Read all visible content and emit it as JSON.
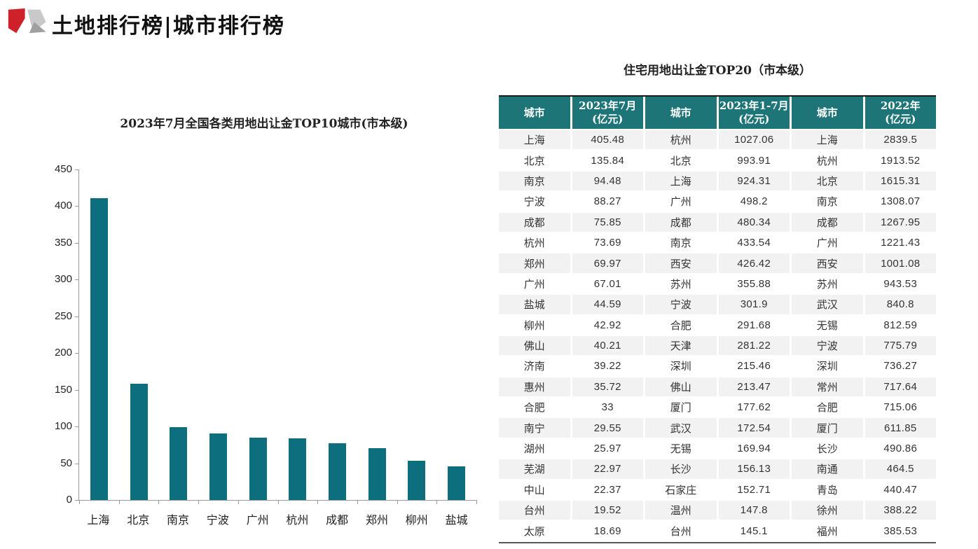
{
  "page": {
    "title": "土地排行榜|城市排行榜"
  },
  "colors": {
    "bar_teal": "#0d6e7d",
    "header_teal": "#1e7578",
    "row_alt_gray": "#f2f2f2",
    "logo_red": "#ce2129",
    "logo_gray_light": "#c9c9c9",
    "logo_gray_dark": "#a0a0a0"
  },
  "chart_data": [
    {
      "type": "bar",
      "title": "2023年7月全国各类用地出让金TOP10城市(市本级)",
      "categories": [
        "上海",
        "北京",
        "南京",
        "宁波",
        "广州",
        "杭州",
        "成都",
        "郑州",
        "柳州",
        "盐城"
      ],
      "values": [
        411,
        158,
        99,
        91,
        85,
        84,
        77,
        71,
        53,
        46
      ],
      "xlabel": "",
      "ylabel": "",
      "ylim": [
        0,
        450
      ],
      "ytick_step": 50,
      "grid": false,
      "legend": false,
      "bar_color": "#0d6e7d"
    },
    {
      "type": "table",
      "title": "住宅用地出让金TOP20（市本级）",
      "columns": [
        "城市",
        "2023年7月\n(亿元)",
        "城市",
        "2023年1-7月\n(亿元)",
        "城市",
        "2022年\n(亿元)"
      ],
      "rows": [
        [
          "上海",
          "405.48",
          "杭州",
          "1027.06",
          "上海",
          "2839.5"
        ],
        [
          "北京",
          "135.84",
          "北京",
          "993.91",
          "杭州",
          "1913.52"
        ],
        [
          "南京",
          "94.48",
          "上海",
          "924.31",
          "北京",
          "1615.31"
        ],
        [
          "宁波",
          "88.27",
          "广州",
          "498.2",
          "南京",
          "1308.07"
        ],
        [
          "成都",
          "75.85",
          "成都",
          "480.34",
          "成都",
          "1267.95"
        ],
        [
          "杭州",
          "73.69",
          "南京",
          "433.54",
          "广州",
          "1221.43"
        ],
        [
          "郑州",
          "69.97",
          "西安",
          "426.42",
          "西安",
          "1001.08"
        ],
        [
          "广州",
          "67.01",
          "苏州",
          "355.88",
          "苏州",
          "943.53"
        ],
        [
          "盐城",
          "44.59",
          "宁波",
          "301.9",
          "武汉",
          "840.8"
        ],
        [
          "柳州",
          "42.92",
          "合肥",
          "291.68",
          "无锡",
          "812.59"
        ],
        [
          "佛山",
          "40.21",
          "天津",
          "281.22",
          "宁波",
          "775.79"
        ],
        [
          "济南",
          "39.22",
          "深圳",
          "215.46",
          "深圳",
          "736.27"
        ],
        [
          "惠州",
          "35.72",
          "佛山",
          "213.47",
          "常州",
          "717.64"
        ],
        [
          "合肥",
          "33",
          "厦门",
          "177.62",
          "合肥",
          "715.06"
        ],
        [
          "南宁",
          "29.55",
          "武汉",
          "172.54",
          "厦门",
          "611.85"
        ],
        [
          "湖州",
          "25.97",
          "无锡",
          "169.94",
          "长沙",
          "490.86"
        ],
        [
          "芜湖",
          "22.97",
          "长沙",
          "156.13",
          "南通",
          "464.5"
        ],
        [
          "中山",
          "22.37",
          "石家庄",
          "152.71",
          "青岛",
          "440.47"
        ],
        [
          "台州",
          "19.52",
          "温州",
          "147.8",
          "徐州",
          "388.22"
        ],
        [
          "太原",
          "18.69",
          "台州",
          "145.1",
          "福州",
          "385.53"
        ]
      ]
    }
  ]
}
